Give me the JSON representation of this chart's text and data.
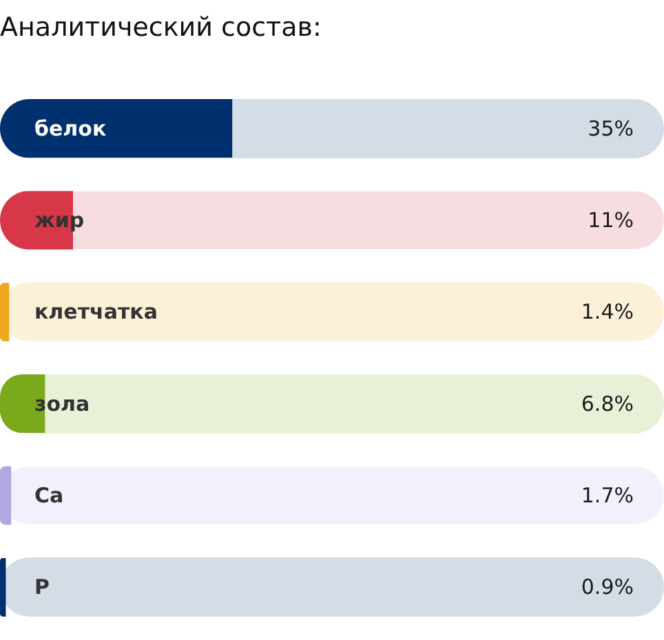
{
  "chart_data": {
    "type": "bar",
    "orientation": "horizontal",
    "title": "Аналитический состав:",
    "categories": [
      "белок",
      "жир",
      "клетчатка",
      "зола",
      "Ca",
      "P"
    ],
    "values": [
      35,
      11,
      1.4,
      6.8,
      1.7,
      0.9
    ],
    "colors": [
      "#00306e",
      "#d8374a",
      "#f0a820",
      "#7aaa1c",
      "#b0a8e0",
      "#00306e"
    ],
    "value_labels": [
      "35%",
      "11%",
      "1.4%",
      "6.8%",
      "1.7%",
      "0.9%"
    ],
    "xlim": [
      0,
      100
    ],
    "tick_labels": "y"
  }
}
